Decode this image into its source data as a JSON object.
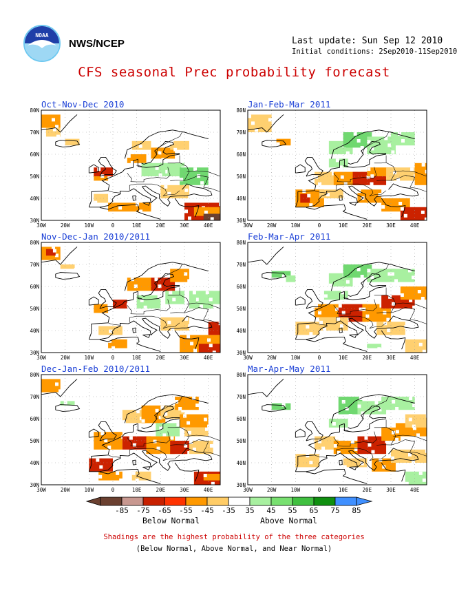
{
  "header": {
    "agency": "NWS/NCEP",
    "last_update": "Last update: Sun Sep 12 2010",
    "initial_conditions": "Initial conditions: 2Sep2010-11Sep2010",
    "title": "CFS seasonal Prec probability forecast"
  },
  "axes": {
    "lat_labels": [
      "80N",
      "70N",
      "60N",
      "50N",
      "40N",
      "30N"
    ],
    "lon_labels": [
      "30W",
      "20W",
      "10W",
      "0",
      "10E",
      "20E",
      "30E",
      "40E"
    ]
  },
  "panels": [
    {
      "title": "Oct-Nov-Dec 2010"
    },
    {
      "title": "Jan-Feb-Mar 2011"
    },
    {
      "title": "Nov-Dec-Jan 2010/2011"
    },
    {
      "title": "Feb-Mar-Apr 2011"
    },
    {
      "title": "Dec-Jan-Feb 2010/2011"
    },
    {
      "title": "Mar-Apr-May 2011"
    }
  ],
  "legend": {
    "tick_labels": [
      "-85",
      "-75",
      "-65",
      "-55",
      "-45",
      "-35",
      "35",
      "45",
      "55",
      "65",
      "75",
      "85"
    ],
    "below_label": "Below Normal",
    "above_label": "Above Normal",
    "colors": {
      "below": [
        "#6b4030",
        "#c89890",
        "#c82000",
        "#ff3300",
        "#ff9900",
        "#ffcc66"
      ],
      "neutral": "#ffffff",
      "above": [
        "#a8f0a0",
        "#78e070",
        "#40c040",
        "#109010",
        "#4090ff"
      ]
    }
  },
  "footnotes": {
    "line1": "Shadings are the highest probability of the three categories",
    "line2": "(Below Normal, Above Normal, and Near Normal)"
  },
  "colors": {
    "title": "#cc0000",
    "panel_title": "#1a3fd6",
    "dry_strong": "#cc2200",
    "dry": "#ff9900",
    "dry_light": "#ffd070",
    "wet_light": "#a8f0a0",
    "wet": "#70d870"
  }
}
